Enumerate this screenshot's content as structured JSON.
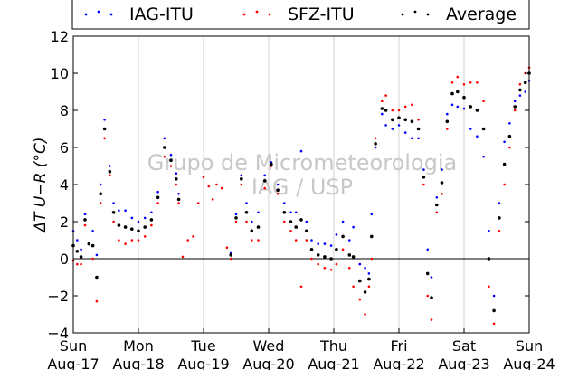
{
  "chart_data": {
    "type": "scatter",
    "ylabel": "ΔT U−R (°C)",
    "ylim": [
      -4,
      12
    ],
    "yticks": [
      -4,
      -2,
      0,
      2,
      4,
      6,
      8,
      10,
      12
    ],
    "xlim": [
      0,
      7
    ],
    "grid": "vertical-only",
    "zero_line": true,
    "legend_position": "top, above plot",
    "watermark_lines": [
      "Grupo de Micrometeorologia",
      "IAG / USP"
    ],
    "x_ticks": [
      {
        "x": 0,
        "day": "Sun",
        "date": "Aug-17"
      },
      {
        "x": 1,
        "day": "Mon",
        "date": "Aug-18"
      },
      {
        "x": 2,
        "day": "Tue",
        "date": "Aug-19"
      },
      {
        "x": 3,
        "day": "Wed",
        "date": "Aug-20"
      },
      {
        "x": 4,
        "day": "Thu",
        "date": "Aug-21"
      },
      {
        "x": 5,
        "day": "Fri",
        "date": "Aug-22"
      },
      {
        "x": 6,
        "day": "Sat",
        "date": "Aug-23"
      },
      {
        "x": 7,
        "day": "Sun",
        "date": "Aug-24"
      }
    ],
    "series": [
      {
        "name": "IAG-ITU",
        "color": "#0000ff",
        "points": [
          [
            0.0,
            1.5
          ],
          [
            0.06,
            1.0
          ],
          [
            0.12,
            0.5
          ],
          [
            0.18,
            2.4
          ],
          [
            0.24,
            0.8
          ],
          [
            0.3,
            1.5
          ],
          [
            0.36,
            0.2
          ],
          [
            0.42,
            4.0
          ],
          [
            0.48,
            7.5
          ],
          [
            0.56,
            5.0
          ],
          [
            0.62,
            3.0
          ],
          [
            0.7,
            2.6
          ],
          [
            0.8,
            2.6
          ],
          [
            0.9,
            2.2
          ],
          [
            1.0,
            2.0
          ],
          [
            1.1,
            2.2
          ],
          [
            1.2,
            2.5
          ],
          [
            1.3,
            3.6
          ],
          [
            1.4,
            6.5
          ],
          [
            1.5,
            5.6
          ],
          [
            1.58,
            4.6
          ],
          [
            1.62,
            3.5
          ],
          [
            2.42,
            0.3
          ],
          [
            2.5,
            2.4
          ],
          [
            2.58,
            4.5
          ],
          [
            2.66,
            3.0
          ],
          [
            2.74,
            2.0
          ],
          [
            2.84,
            2.5
          ],
          [
            2.94,
            4.5
          ],
          [
            3.04,
            5.2
          ],
          [
            3.14,
            4.0
          ],
          [
            3.24,
            3.0
          ],
          [
            3.34,
            2.5
          ],
          [
            3.42,
            2.5
          ],
          [
            3.5,
            5.8
          ],
          [
            3.58,
            2.0
          ],
          [
            3.66,
            1.0
          ],
          [
            3.76,
            0.8
          ],
          [
            3.86,
            0.8
          ],
          [
            3.96,
            0.7
          ],
          [
            4.04,
            1.3
          ],
          [
            4.14,
            2.0
          ],
          [
            4.24,
            1.0
          ],
          [
            4.3,
            1.7
          ],
          [
            4.4,
            -0.3
          ],
          [
            4.48,
            -0.5
          ],
          [
            4.54,
            -0.8
          ],
          [
            4.58,
            2.4
          ],
          [
            4.64,
            6.0
          ],
          [
            4.74,
            7.8
          ],
          [
            4.8,
            7.2
          ],
          [
            4.9,
            7.0
          ],
          [
            5.0,
            7.2
          ],
          [
            5.1,
            6.8
          ],
          [
            5.2,
            6.5
          ],
          [
            5.3,
            6.5
          ],
          [
            5.38,
            4.8
          ],
          [
            5.44,
            0.5
          ],
          [
            5.5,
            -1.0
          ],
          [
            5.58,
            3.3
          ],
          [
            5.66,
            4.8
          ],
          [
            5.74,
            7.8
          ],
          [
            5.82,
            8.3
          ],
          [
            5.9,
            8.2
          ],
          [
            6.0,
            8.1
          ],
          [
            6.1,
            7.0
          ],
          [
            6.2,
            6.6
          ],
          [
            6.3,
            5.5
          ],
          [
            6.38,
            1.5
          ],
          [
            6.46,
            -2.0
          ],
          [
            6.54,
            3.0
          ],
          [
            6.62,
            6.3
          ],
          [
            6.7,
            7.3
          ],
          [
            6.78,
            8.5
          ],
          [
            6.86,
            8.8
          ],
          [
            6.94,
            9.0
          ],
          [
            7.0,
            9.6
          ]
        ]
      },
      {
        "name": "SFZ-ITU",
        "color": "#ff0000",
        "points": [
          [
            0.0,
            -0.1
          ],
          [
            0.06,
            -0.3
          ],
          [
            0.12,
            -0.3
          ],
          [
            0.18,
            1.8
          ],
          [
            0.24,
            0.8
          ],
          [
            0.3,
            0.0
          ],
          [
            0.36,
            -2.3
          ],
          [
            0.42,
            3.0
          ],
          [
            0.48,
            6.5
          ],
          [
            0.56,
            4.5
          ],
          [
            0.62,
            2.0
          ],
          [
            0.7,
            1.0
          ],
          [
            0.8,
            0.8
          ],
          [
            0.9,
            1.0
          ],
          [
            1.0,
            1.0
          ],
          [
            1.1,
            1.2
          ],
          [
            1.2,
            1.8
          ],
          [
            1.3,
            3.0
          ],
          [
            1.4,
            5.5
          ],
          [
            1.5,
            5.0
          ],
          [
            1.58,
            4.0
          ],
          [
            1.62,
            3.0
          ],
          [
            1.68,
            0.1
          ],
          [
            1.76,
            1.0
          ],
          [
            1.84,
            1.2
          ],
          [
            1.92,
            3.0
          ],
          [
            2.0,
            4.4
          ],
          [
            2.08,
            3.9
          ],
          [
            2.14,
            3.2
          ],
          [
            2.2,
            4.0
          ],
          [
            2.28,
            3.8
          ],
          [
            2.36,
            0.6
          ],
          [
            2.42,
            0.0
          ],
          [
            2.5,
            2.0
          ],
          [
            2.58,
            4.0
          ],
          [
            2.66,
            2.0
          ],
          [
            2.74,
            1.0
          ],
          [
            2.84,
            1.0
          ],
          [
            2.94,
            3.8
          ],
          [
            3.04,
            5.0
          ],
          [
            3.14,
            3.5
          ],
          [
            3.24,
            2.0
          ],
          [
            3.34,
            1.5
          ],
          [
            3.42,
            1.0
          ],
          [
            3.5,
            -1.5
          ],
          [
            3.58,
            1.0
          ],
          [
            3.66,
            0.0
          ],
          [
            3.76,
            -0.3
          ],
          [
            3.86,
            -0.5
          ],
          [
            3.96,
            -0.6
          ],
          [
            4.04,
            -0.3
          ],
          [
            4.14,
            0.5
          ],
          [
            4.24,
            -0.5
          ],
          [
            4.3,
            -1.5
          ],
          [
            4.4,
            -2.2
          ],
          [
            4.48,
            -3.0
          ],
          [
            4.54,
            -1.5
          ],
          [
            4.58,
            0.0
          ],
          [
            4.64,
            6.5
          ],
          [
            4.74,
            8.5
          ],
          [
            4.8,
            8.8
          ],
          [
            4.9,
            8.0
          ],
          [
            5.0,
            8.0
          ],
          [
            5.1,
            8.2
          ],
          [
            5.2,
            8.3
          ],
          [
            5.3,
            7.5
          ],
          [
            5.38,
            4.0
          ],
          [
            5.44,
            -2.0
          ],
          [
            5.5,
            -3.3
          ],
          [
            5.58,
            2.5
          ],
          [
            5.66,
            3.5
          ],
          [
            5.74,
            7.0
          ],
          [
            5.82,
            9.5
          ],
          [
            5.9,
            9.8
          ],
          [
            6.0,
            9.4
          ],
          [
            6.1,
            9.5
          ],
          [
            6.2,
            9.5
          ],
          [
            6.3,
            8.5
          ],
          [
            6.38,
            -1.5
          ],
          [
            6.46,
            -3.5
          ],
          [
            6.54,
            1.5
          ],
          [
            6.62,
            4.0
          ],
          [
            6.7,
            6.0
          ],
          [
            6.78,
            8.0
          ],
          [
            6.86,
            9.4
          ],
          [
            6.94,
            10.0
          ],
          [
            7.0,
            10.3
          ]
        ]
      },
      {
        "name": "Average",
        "color": "#000000",
        "points": [
          [
            0.0,
            0.7
          ],
          [
            0.06,
            0.4
          ],
          [
            0.12,
            0.1
          ],
          [
            0.18,
            2.1
          ],
          [
            0.24,
            0.8
          ],
          [
            0.3,
            0.7
          ],
          [
            0.36,
            -1.0
          ],
          [
            0.42,
            3.5
          ],
          [
            0.48,
            7.0
          ],
          [
            0.56,
            4.7
          ],
          [
            0.62,
            2.5
          ],
          [
            0.7,
            1.8
          ],
          [
            0.8,
            1.7
          ],
          [
            0.9,
            1.6
          ],
          [
            1.0,
            1.5
          ],
          [
            1.1,
            1.7
          ],
          [
            1.2,
            2.1
          ],
          [
            1.3,
            3.3
          ],
          [
            1.4,
            6.0
          ],
          [
            1.5,
            5.3
          ],
          [
            1.58,
            4.3
          ],
          [
            1.62,
            3.2
          ],
          [
            2.42,
            0.2
          ],
          [
            2.5,
            2.2
          ],
          [
            2.58,
            4.3
          ],
          [
            2.66,
            2.5
          ],
          [
            2.74,
            1.5
          ],
          [
            2.84,
            1.7
          ],
          [
            2.94,
            4.2
          ],
          [
            3.04,
            5.1
          ],
          [
            3.14,
            3.7
          ],
          [
            3.24,
            2.5
          ],
          [
            3.34,
            2.0
          ],
          [
            3.42,
            1.7
          ],
          [
            3.5,
            2.1
          ],
          [
            3.58,
            1.5
          ],
          [
            3.66,
            0.5
          ],
          [
            3.76,
            0.2
          ],
          [
            3.86,
            0.1
          ],
          [
            3.96,
            0.0
          ],
          [
            4.04,
            0.5
          ],
          [
            4.14,
            1.2
          ],
          [
            4.24,
            0.2
          ],
          [
            4.3,
            0.1
          ],
          [
            4.4,
            -1.2
          ],
          [
            4.48,
            -1.8
          ],
          [
            4.54,
            -1.1
          ],
          [
            4.58,
            1.2
          ],
          [
            4.64,
            6.2
          ],
          [
            4.74,
            8.1
          ],
          [
            4.8,
            8.0
          ],
          [
            4.9,
            7.5
          ],
          [
            5.0,
            7.6
          ],
          [
            5.1,
            7.5
          ],
          [
            5.2,
            7.4
          ],
          [
            5.3,
            7.0
          ],
          [
            5.38,
            4.4
          ],
          [
            5.44,
            -0.8
          ],
          [
            5.5,
            -2.1
          ],
          [
            5.58,
            2.9
          ],
          [
            5.66,
            4.1
          ],
          [
            5.74,
            7.4
          ],
          [
            5.82,
            8.9
          ],
          [
            5.9,
            9.0
          ],
          [
            6.0,
            8.7
          ],
          [
            6.1,
            8.2
          ],
          [
            6.2,
            8.0
          ],
          [
            6.3,
            7.0
          ],
          [
            6.38,
            0.0
          ],
          [
            6.46,
            -2.8
          ],
          [
            6.54,
            2.2
          ],
          [
            6.62,
            5.1
          ],
          [
            6.7,
            6.6
          ],
          [
            6.78,
            8.2
          ],
          [
            6.86,
            9.1
          ],
          [
            6.94,
            9.5
          ],
          [
            7.0,
            10.0
          ]
        ]
      }
    ]
  }
}
